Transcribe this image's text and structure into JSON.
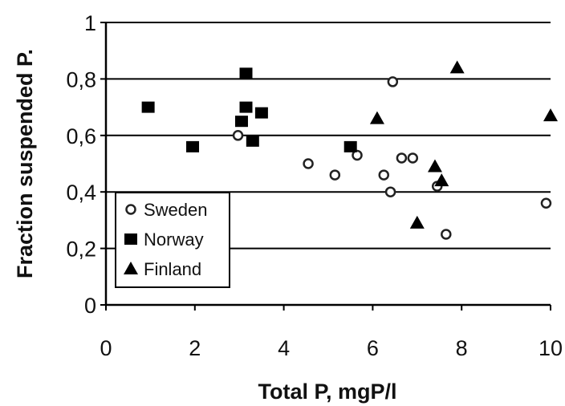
{
  "chart_data": {
    "type": "scatter",
    "title": "",
    "xlabel": "Total P, mgP/l",
    "ylabel": "Fraction suspended P.",
    "xlim": [
      0,
      10
    ],
    "ylim": [
      0,
      1
    ],
    "xticks": [
      "0",
      "2",
      "4",
      "6",
      "8",
      "10"
    ],
    "yticks": [
      "0",
      "0,2",
      "0,4",
      "0,6",
      "0,8",
      "1"
    ],
    "grid": "horizontal",
    "legend_position": "bottom-left",
    "series": [
      {
        "name": "Sweden",
        "marker": "open-circle",
        "x": [
          2.97,
          4.55,
          5.15,
          5.65,
          6.25,
          6.4,
          6.45,
          6.65,
          6.9,
          7.45,
          7.65,
          9.9
        ],
        "y": [
          0.6,
          0.5,
          0.46,
          0.53,
          0.46,
          0.4,
          0.79,
          0.52,
          0.52,
          0.42,
          0.25,
          0.36
        ]
      },
      {
        "name": "Norway",
        "marker": "filled-square",
        "x": [
          0.95,
          1.95,
          3.05,
          3.15,
          3.15,
          3.3,
          3.5,
          5.5
        ],
        "y": [
          0.7,
          0.56,
          0.65,
          0.82,
          0.7,
          0.58,
          0.68,
          0.56
        ]
      },
      {
        "name": "Finland",
        "marker": "filled-triangle",
        "x": [
          6.1,
          7.0,
          7.4,
          7.55,
          7.9,
          10.0
        ],
        "y": [
          0.66,
          0.29,
          0.49,
          0.44,
          0.84,
          0.67
        ]
      }
    ]
  }
}
